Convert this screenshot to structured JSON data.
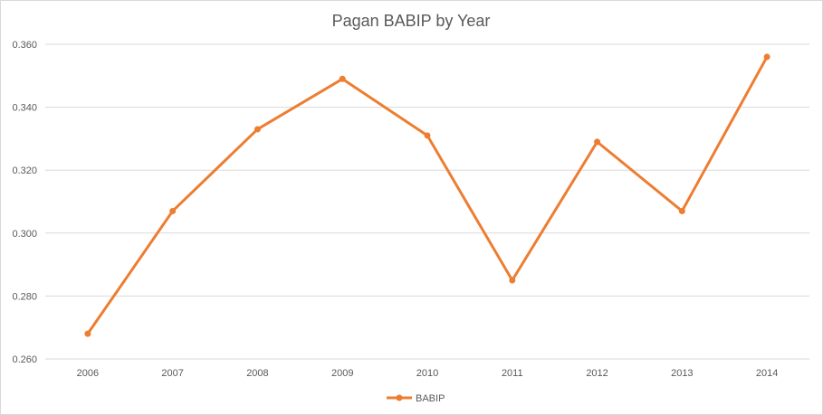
{
  "chart_data": {
    "type": "line",
    "title": "Pagan BABIP by Year",
    "xlabel": "",
    "ylabel": "",
    "categories": [
      "2006",
      "2007",
      "2008",
      "2009",
      "2010",
      "2011",
      "2012",
      "2013",
      "2014"
    ],
    "series": [
      {
        "name": "BABIP",
        "values": [
          0.268,
          0.307,
          0.333,
          0.349,
          0.331,
          0.285,
          0.329,
          0.307,
          0.356
        ],
        "color": "#ed7d31"
      }
    ],
    "ylim": [
      0.26,
      0.36
    ],
    "yticks": [
      "0.260",
      "0.280",
      "0.300",
      "0.320",
      "0.340",
      "0.360"
    ],
    "grid": true,
    "legend": "bottom",
    "gridline_color": "#d9d9d9"
  }
}
